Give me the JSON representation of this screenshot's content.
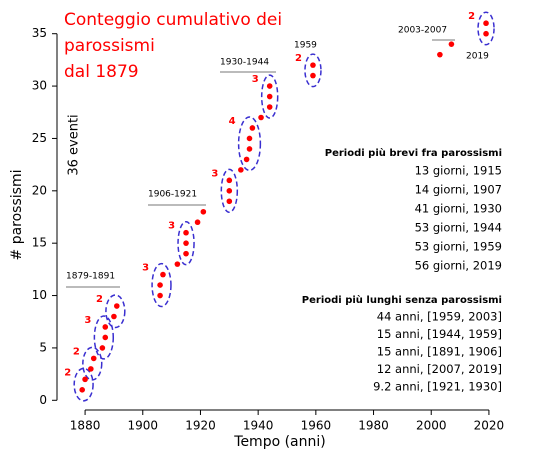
{
  "chart_data": {
    "type": "scatter",
    "title": [
      "Conteggio cumulativo dei",
      "parossismi",
      "dal 1879"
    ],
    "side_label": "36 eventi",
    "x_label": "Tempo (anni)",
    "y_label": "# parossismi",
    "xlim": [
      1872,
      2028
    ],
    "ylim": [
      -1.5,
      36.5
    ],
    "xticks": [
      1880,
      1900,
      1920,
      1940,
      1960,
      1980,
      2000,
      2020
    ],
    "yticks": [
      0,
      5,
      10,
      15,
      20,
      25,
      30,
      35
    ],
    "series": [
      {
        "name": "parossismi",
        "color": "#ff0000",
        "x": [
          1879,
          1880,
          1882,
          1883,
          1886,
          1887,
          1887,
          1890,
          1891,
          1906,
          1906,
          1907,
          1912,
          1915,
          1915,
          1915,
          1919,
          1921,
          1930,
          1930,
          1930,
          1934,
          1936,
          1937,
          1937,
          1938,
          1941,
          1944,
          1944,
          1944,
          1959,
          1959,
          2003,
          2007,
          2019,
          2019
        ],
        "values": [
          1,
          2,
          3,
          4,
          5,
          6,
          7,
          8,
          9,
          10,
          11,
          12,
          13,
          14,
          15,
          16,
          17,
          18,
          19,
          20,
          21,
          22,
          23,
          24,
          25,
          26,
          27,
          28,
          29,
          30,
          31,
          32,
          33,
          34,
          35,
          36
        ]
      }
    ],
    "group_color": "#3a2fd0",
    "group_labels": [
      "2",
      "2",
      "3",
      "2",
      "3",
      "3",
      "3",
      "4",
      "3",
      "2",
      "2"
    ],
    "periods": [
      "1879-1891",
      "1906-1921",
      "1930-1944",
      "1959",
      "2003-2007",
      "2019"
    ],
    "shortest_title": "Periodi più brevi fra parossismi",
    "shortest": [
      "13 giorni, 1915",
      "14 giorni, 1907",
      "41 giorni, 1930",
      "53 giorni, 1944",
      "53 giorni, 1959",
      "56 giorni, 2019"
    ],
    "longest_title": "Periodi più lunghi senza parossismi",
    "longest": [
      "44 anni, [1959, 2003]",
      "15 anni, [1944, 1959]",
      "15 anni, [1891, 1906]",
      "12 anni, [2007, 2019]",
      "9.2 anni, [1921, 1930]"
    ]
  }
}
